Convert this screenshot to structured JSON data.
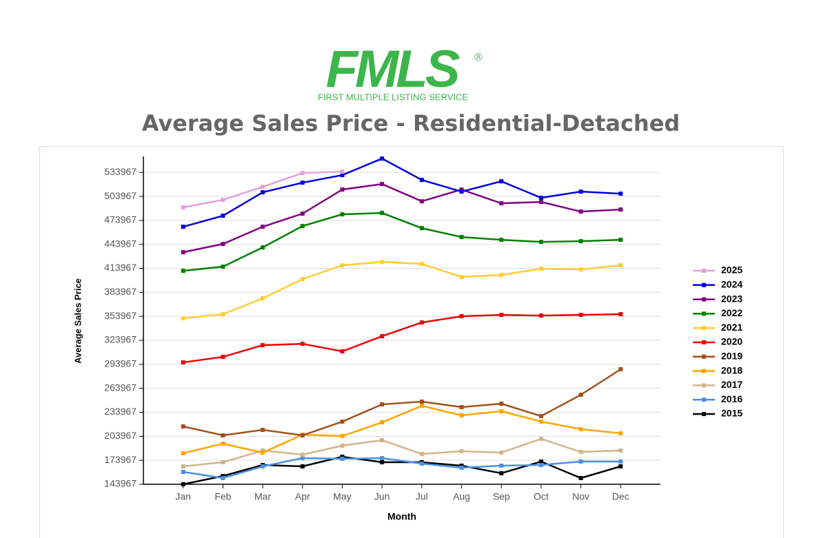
{
  "logo": {
    "mark": "FMLS",
    "registered": "®",
    "tagline": "FIRST MULTIPLE LISTING SERVICE"
  },
  "chart_data": {
    "type": "line",
    "title": "Average Sales Price - Residential-Detached",
    "x_label": "Month",
    "y_label": "Average Sales Price",
    "categories": [
      "Jan",
      "Feb",
      "Mar",
      "Apr",
      "May",
      "Jun",
      "Jul",
      "Aug",
      "Sep",
      "Oct",
      "Nov",
      "Dec"
    ],
    "ylim": [
      143967,
      553967
    ],
    "yticks": [
      143967,
      173967,
      203967,
      233967,
      263967,
      293967,
      323967,
      353967,
      383967,
      413967,
      443967,
      473967,
      503967,
      533967
    ],
    "grid": true,
    "legend": "right",
    "series": [
      {
        "name": "2025",
        "color": "#e09fdd",
        "values": [
          490089,
          499560,
          515919,
          533139,
          534861,
          null,
          null,
          null,
          null,
          null,
          null,
          null
        ]
      },
      {
        "name": "2024",
        "color": "#0000e0",
        "values": [
          465981,
          479757,
          509031,
          521085,
          530556,
          551220,
          524529,
          509892,
          522807,
          502143,
          509892,
          507309
        ]
      },
      {
        "name": "2023",
        "color": "#800080",
        "values": [
          434124,
          444456,
          465981,
          482340,
          512475,
          519363,
          497838,
          512475,
          495255,
          496977,
          484923,
          487506
        ]
      },
      {
        "name": "2022",
        "color": "#008000",
        "values": [
          410877,
          416043,
          440151,
          466842,
          481479,
          483201,
          464259,
          453066,
          449622,
          447039,
          447900,
          449622
        ]
      },
      {
        "name": "2021",
        "color": "#ffcc33",
        "values": [
          351468,
          356634,
          376437,
          400545,
          417765,
          422070,
          419487,
          403128,
          405711,
          413460,
          412599,
          417765
        ]
      },
      {
        "name": "2020",
        "color": "#ee0000",
        "values": [
          296364,
          303252,
          317889,
          319611,
          310140,
          329082,
          346302,
          354051,
          355773,
          354912,
          355773,
          356634
        ]
      },
      {
        "name": "2019",
        "color": "#a0501a",
        "values": [
          216291,
          205098,
          211986,
          205098,
          222318,
          243843,
          247287,
          240399,
          244704,
          229206,
          255897,
          287754
        ]
      },
      {
        "name": "2018",
        "color": "#ffa500",
        "values": [
          182712,
          194766,
          183573,
          205959,
          204237,
          221457,
          242121,
          230067,
          235233,
          222318,
          212847,
          207681
        ]
      },
      {
        "name": "2017",
        "color": "#d2b48c",
        "values": [
          166353,
          171519,
          186156,
          180990,
          192183,
          199071,
          181851,
          185295,
          183573,
          200793,
          184434,
          186156
        ]
      },
      {
        "name": "2016",
        "color": "#4a90e2",
        "values": [
          159465,
          151716,
          166353,
          176685,
          175824,
          176685,
          169797,
          164631,
          167214,
          168075,
          172380,
          172380
        ]
      },
      {
        "name": "2015",
        "color": "#000000",
        "values": [
          143967,
          154299,
          168075,
          166353,
          178407,
          171519,
          171519,
          167214,
          157743,
          172380,
          151716,
          166353
        ]
      }
    ]
  }
}
